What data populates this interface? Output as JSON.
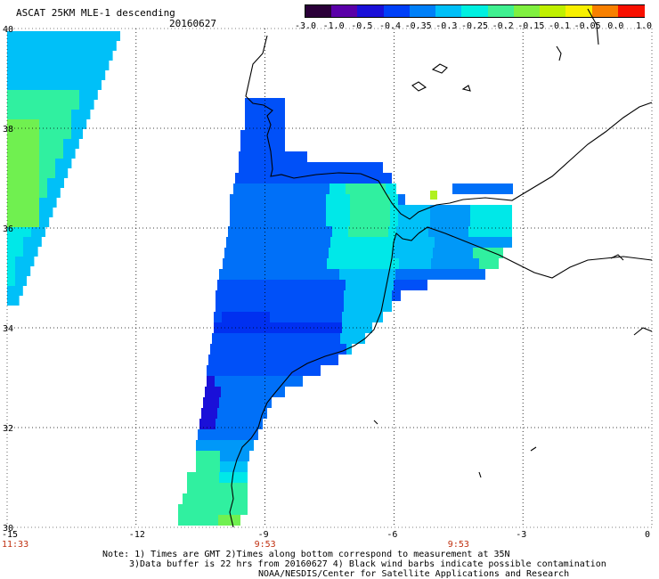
{
  "header": {
    "title": "ASCAT 25KM MLE-1 descending",
    "date": "20160627"
  },
  "colorbar": {
    "labels": [
      "-3.0",
      "-1.0",
      "-0.5",
      "-0.4",
      "-0.35",
      "-0.3",
      "-0.25",
      "-0.2",
      "-0.15",
      "-0.1",
      "-0.05",
      "0.0",
      "1.0"
    ],
    "colors": [
      "#2a0038",
      "#5a00a8",
      "#1a10d8",
      "#0040f8",
      "#0080f8",
      "#00c0f8",
      "#00f0e0",
      "#40f090",
      "#80f040",
      "#c0f000",
      "#f8f000",
      "#f88000",
      "#f81000"
    ]
  },
  "map": {
    "lon_labels": [
      "-15",
      "-12",
      "-9",
      "-6",
      "-3",
      "0"
    ],
    "lat_labels": [
      "30",
      "32",
      "34",
      "36",
      "38",
      "40"
    ],
    "lon_range": [
      -15,
      0
    ],
    "lat_range": [
      30,
      40
    ],
    "time_labels": [
      {
        "lon": -15,
        "text": "11:33"
      },
      {
        "lon": -9,
        "text": "9:53"
      },
      {
        "lon": -4.5,
        "text": "9:53"
      }
    ],
    "time_color": "#c03010",
    "ocean_color": "#ffffff",
    "coast_color": "#000000"
  },
  "notes": {
    "line1": "Note: 1) Times are GMT 2)Times along bottom correspond to measurement at 35N",
    "line2": "3)Data buffer is 22 hrs from 20160627 4) Black wind barbs indicate possible contamination",
    "line3": "NOAA/NESDIS/Center for Satellite Applications and Research"
  }
}
